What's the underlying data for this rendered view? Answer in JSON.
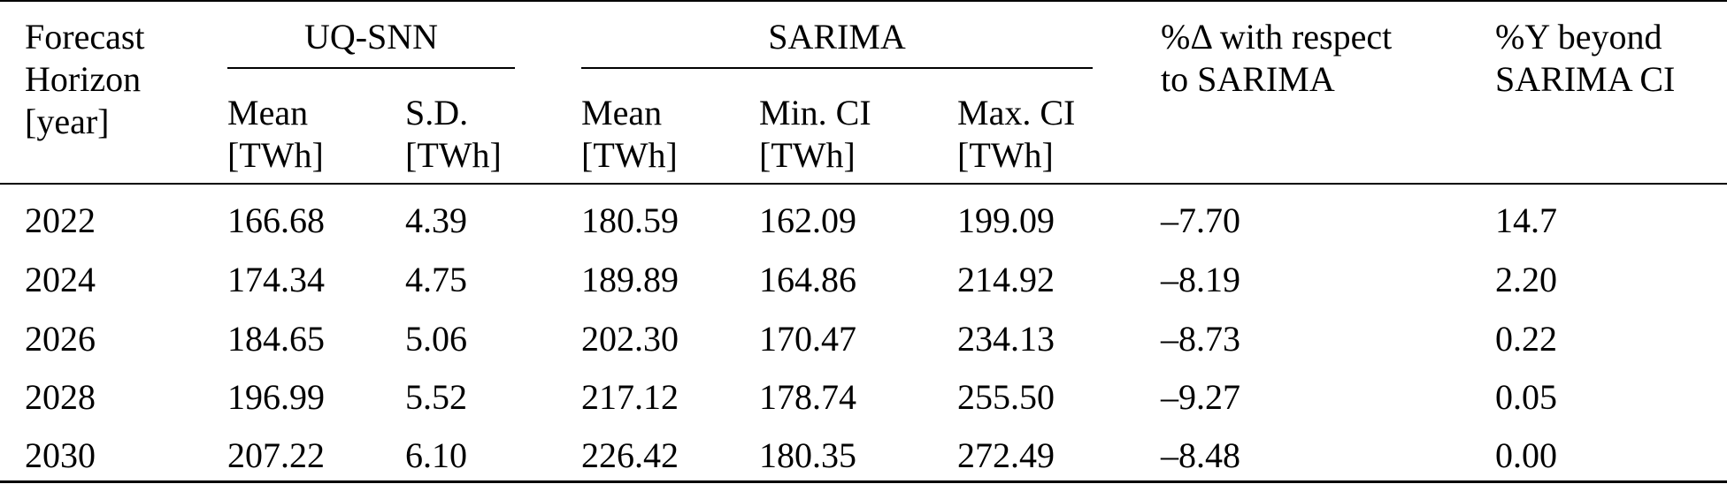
{
  "table": {
    "headers": {
      "forecast_horizon": [
        "Forecast",
        "Horizon",
        "[year]"
      ],
      "uq_snn": "UQ-SNN",
      "sarima": "SARIMA",
      "pct_delta": [
        "%Δ with respect",
        "to SARIMA"
      ],
      "pct_y": [
        "%Y beyond",
        "SARIMA CI"
      ],
      "sub": {
        "uq_mean": [
          "Mean",
          "[TWh]"
        ],
        "uq_sd": [
          "S.D.",
          "[TWh]"
        ],
        "sar_mean": [
          "Mean",
          "[TWh]"
        ],
        "sar_min_ci": [
          "Min. CI",
          "[TWh]"
        ],
        "sar_max_ci": [
          "Max. CI",
          "[TWh]"
        ]
      }
    },
    "rows": [
      [
        "2022",
        "166.68",
        "4.39",
        "180.59",
        "162.09",
        "199.09",
        "–7.70",
        "14.7"
      ],
      [
        "2024",
        "174.34",
        "4.75",
        "189.89",
        "164.86",
        "214.92",
        "–8.19",
        "2.20"
      ],
      [
        "2026",
        "184.65",
        "5.06",
        "202.30",
        "170.47",
        "234.13",
        "–8.73",
        "0.22"
      ],
      [
        "2028",
        "196.99",
        "5.52",
        "217.12",
        "178.74",
        "255.50",
        "–9.27",
        "0.05"
      ],
      [
        "2030",
        "207.22",
        "6.10",
        "226.42",
        "180.35",
        "272.49",
        "–8.48",
        "0.00"
      ]
    ]
  }
}
